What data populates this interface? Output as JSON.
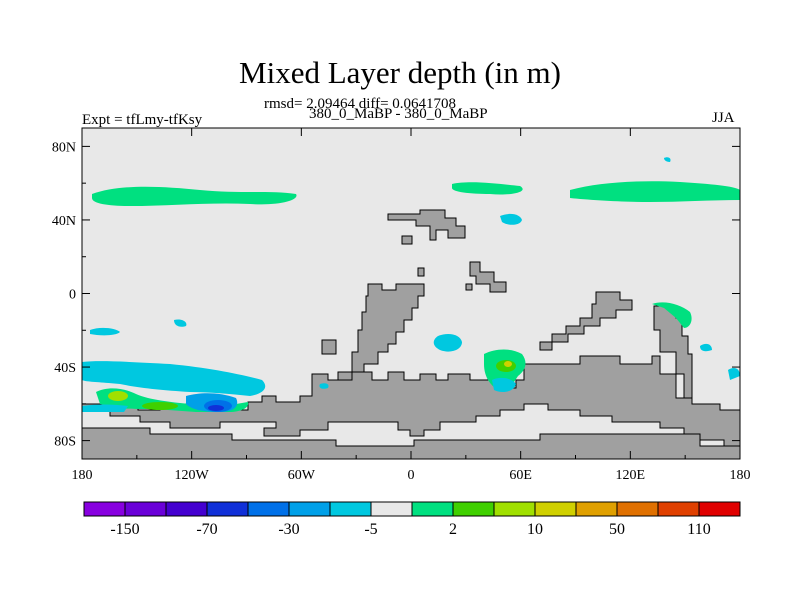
{
  "chart_data": {
    "type": "heatmap",
    "title": "Mixed Layer depth (in m)",
    "stats": "rmsd= 2.09464 diff= 0.0641708",
    "case": "380_0_MaBP - 380_0_MaBP",
    "left_label": "Expt = tfLmy-tfKsy",
    "right_label": "JJA",
    "x_ticks": [
      "180",
      "120W",
      "60W",
      "0",
      "60E",
      "120E",
      "180"
    ],
    "x_tick_values": [
      -180,
      -120,
      -60,
      0,
      60,
      120,
      180
    ],
    "y_ticks": [
      "80N",
      "40N",
      "0",
      "40S",
      "80S"
    ],
    "y_tick_values": [
      80,
      40,
      0,
      -40,
      -80
    ],
    "xlim": [
      -180,
      180
    ],
    "ylim": [
      -90,
      90
    ],
    "colorbar": {
      "colors": [
        "#8800e0",
        "#6a00d8",
        "#4400d0",
        "#1030d8",
        "#0070e8",
        "#00a0e8",
        "#00c8e0",
        "#e8e8e8",
        "#00e080",
        "#40d000",
        "#a0e000",
        "#d0d000",
        "#e0a000",
        "#e07000",
        "#e04000",
        "#e00000"
      ],
      "labels": [
        "-150",
        "-70",
        "-30",
        "-5",
        "2",
        "10",
        "50",
        "110"
      ]
    },
    "land_color": "#a0a0a0",
    "ocean_color": "#e8e8e8"
  }
}
